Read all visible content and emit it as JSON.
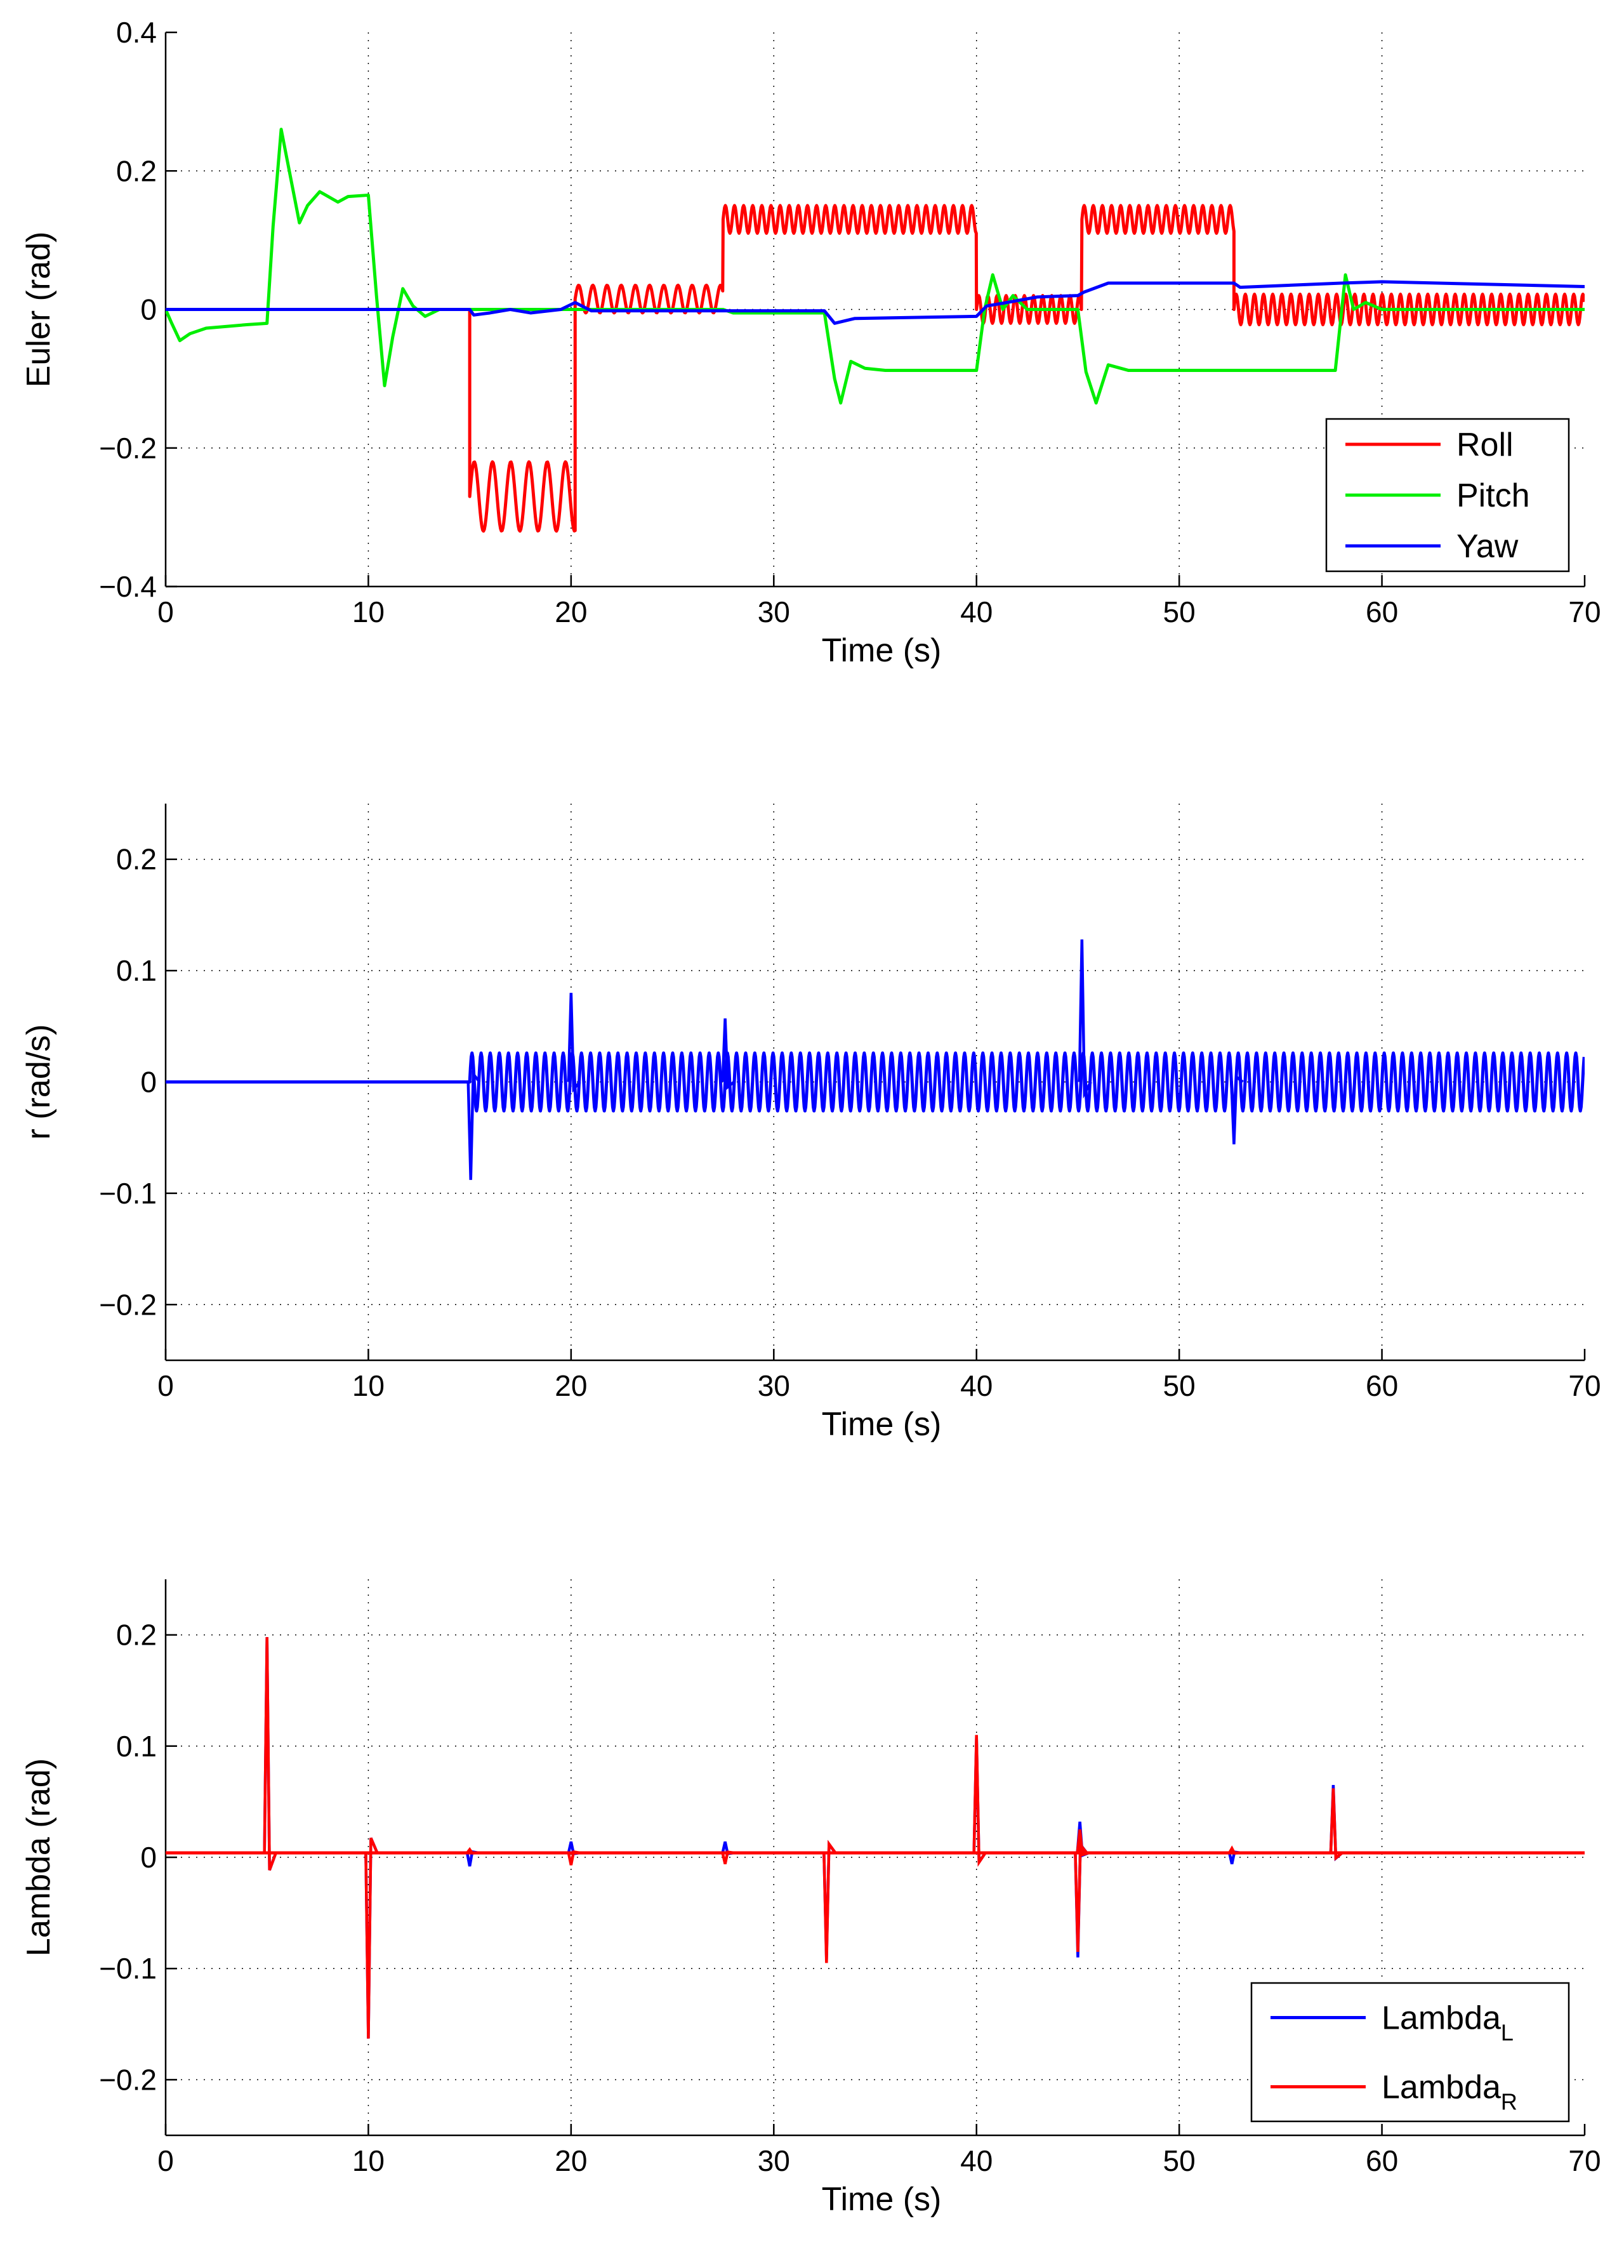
{
  "chart_data": [
    {
      "type": "line",
      "title": "",
      "xlabel": "Time (s)",
      "ylabel": "Euler (rad)",
      "xlim": [
        0,
        70
      ],
      "ylim": [
        -0.4,
        0.4
      ],
      "xticks": [
        0,
        10,
        20,
        30,
        40,
        50,
        60,
        70
      ],
      "yticks": [
        -0.4,
        -0.2,
        0,
        0.2,
        0.4
      ],
      "xtick_labels": [
        "0",
        "10",
        "20",
        "30",
        "40",
        "50",
        "60",
        "70"
      ],
      "ytick_labels": [
        "−0.4",
        "−0.2",
        "0",
        "0.2",
        "0.4"
      ],
      "grid": true,
      "legend_position": "bottom-right",
      "legend": [
        {
          "name": "Roll",
          "color": "#ff0000"
        },
        {
          "name": "Pitch",
          "color": "#00ee00"
        },
        {
          "name": "Yaw",
          "color": "#0000ff"
        }
      ],
      "series": [
        {
          "name": "Roll",
          "color": "#ff0000",
          "segments": [
            {
              "t0": 0,
              "t1": 15,
              "base": 0,
              "amp": 0,
              "period": 1
            },
            {
              "t0": 15,
              "t1": 20.2,
              "base": -0.27,
              "amp": 0.05,
              "period": 0.9
            },
            {
              "t0": 20.2,
              "t1": 27.5,
              "base": 0.015,
              "amp": 0.02,
              "period": 0.7
            },
            {
              "t0": 27.5,
              "t1": 40,
              "base": 0.13,
              "amp": 0.02,
              "period": 0.45
            },
            {
              "t0": 40,
              "t1": 45.2,
              "base": 0.0,
              "amp": 0.02,
              "period": 0.45
            },
            {
              "t0": 45.2,
              "t1": 52.7,
              "base": 0.13,
              "amp": 0.02,
              "period": 0.45
            },
            {
              "t0": 52.7,
              "t1": 70,
              "base": 0.0,
              "amp": 0.022,
              "period": 0.45
            }
          ]
        },
        {
          "name": "Pitch",
          "color": "#00ee00",
          "points": [
            [
              0,
              0
            ],
            [
              0.3,
              -0.02
            ],
            [
              0.7,
              -0.045
            ],
            [
              1.2,
              -0.035
            ],
            [
              2,
              -0.027
            ],
            [
              4,
              -0.022
            ],
            [
              5,
              -0.02
            ],
            [
              5.3,
              0.12
            ],
            [
              5.7,
              0.26
            ],
            [
              6.1,
              0.2
            ],
            [
              6.6,
              0.125
            ],
            [
              7,
              0.15
            ],
            [
              7.6,
              0.17
            ],
            [
              8.5,
              0.155
            ],
            [
              9,
              0.163
            ],
            [
              10,
              0.165
            ],
            [
              10.4,
              0.02
            ],
            [
              10.8,
              -0.11
            ],
            [
              11.2,
              -0.04
            ],
            [
              11.7,
              0.03
            ],
            [
              12.2,
              0.005
            ],
            [
              12.8,
              -0.01
            ],
            [
              13.5,
              0
            ],
            [
              27.5,
              0
            ],
            [
              28,
              -0.005
            ],
            [
              32.5,
              -0.005
            ],
            [
              33,
              -0.1
            ],
            [
              33.3,
              -0.135
            ],
            [
              33.8,
              -0.075
            ],
            [
              34.5,
              -0.085
            ],
            [
              35.5,
              -0.088
            ],
            [
              40,
              -0.088
            ],
            [
              40.4,
              0.0
            ],
            [
              40.8,
              0.05
            ],
            [
              41.3,
              0.0
            ],
            [
              41.8,
              0.02
            ],
            [
              42.5,
              0.0
            ],
            [
              45,
              0.0
            ],
            [
              45.4,
              -0.09
            ],
            [
              45.9,
              -0.135
            ],
            [
              46.5,
              -0.08
            ],
            [
              47.5,
              -0.088
            ],
            [
              57.7,
              -0.088
            ],
            [
              58.2,
              0.05
            ],
            [
              58.6,
              0.0
            ],
            [
              59.2,
              0.01
            ],
            [
              60,
              0.0
            ],
            [
              70,
              0.0
            ]
          ]
        },
        {
          "name": "Yaw",
          "color": "#0000ff",
          "points": [
            [
              0,
              0
            ],
            [
              15,
              0
            ],
            [
              15.2,
              -0.008
            ],
            [
              16,
              -0.005
            ],
            [
              17,
              0
            ],
            [
              18,
              -0.005
            ],
            [
              19.5,
              0
            ],
            [
              20.2,
              0.01
            ],
            [
              21,
              -0.002
            ],
            [
              27.5,
              -0.002
            ],
            [
              32.5,
              -0.002
            ],
            [
              33,
              -0.02
            ],
            [
              34,
              -0.013
            ],
            [
              40,
              -0.01
            ],
            [
              40.5,
              0.005
            ],
            [
              41.5,
              0.01
            ],
            [
              43,
              0.018
            ],
            [
              45,
              0.02
            ],
            [
              45.3,
              0.025
            ],
            [
              46.5,
              0.038
            ],
            [
              52.7,
              0.038
            ],
            [
              53,
              0.032
            ],
            [
              58,
              0.038
            ],
            [
              60,
              0.04
            ],
            [
              70,
              0.033
            ]
          ]
        }
      ]
    },
    {
      "type": "line",
      "title": "",
      "xlabel": "Time (s)",
      "ylabel": "r (rad/s)",
      "xlim": [
        0,
        70
      ],
      "ylim": [
        -0.25,
        0.25
      ],
      "xticks": [
        0,
        10,
        20,
        30,
        40,
        50,
        60,
        70
      ],
      "yticks": [
        -0.2,
        -0.1,
        0,
        0.1,
        0.2
      ],
      "xtick_labels": [
        "0",
        "10",
        "20",
        "30",
        "40",
        "50",
        "60",
        "70"
      ],
      "ytick_labels": [
        "−0.2",
        "−0.1",
        "0",
        "0.1",
        "0.2"
      ],
      "grid": true,
      "series": [
        {
          "name": "r",
          "color": "#0000ff",
          "segments": [
            {
              "t0": 0,
              "t1": 15,
              "base": 0,
              "amp": 0,
              "period": 1
            },
            {
              "t0": 15,
              "t1": 70,
              "base": 0.0,
              "amp": 0.026,
              "period": 0.45
            }
          ],
          "spikes": [
            [
              15.05,
              -0.088
            ],
            [
              20.0,
              0.08
            ],
            [
              27.6,
              0.057
            ],
            [
              45.2,
              0.128
            ],
            [
              52.7,
              -0.056
            ]
          ]
        }
      ]
    },
    {
      "type": "line",
      "title": "",
      "xlabel": "Time (s)",
      "ylabel": "Lambda (rad)",
      "xlim": [
        0,
        70
      ],
      "ylim": [
        -0.25,
        0.25
      ],
      "xticks": [
        0,
        10,
        20,
        30,
        40,
        50,
        60,
        70
      ],
      "yticks": [
        -0.2,
        -0.1,
        0,
        0.1,
        0.2
      ],
      "xtick_labels": [
        "0",
        "10",
        "20",
        "30",
        "40",
        "50",
        "60",
        "70"
      ],
      "ytick_labels": [
        "−0.2",
        "−0.1",
        "0",
        "0.1",
        "0.2"
      ],
      "grid": true,
      "legend_position": "bottom-right",
      "legend": [
        {
          "name": "Lambda",
          "sub": "L",
          "color": "#0000ff"
        },
        {
          "name": "Lambda",
          "sub": "R",
          "color": "#ff0000"
        }
      ],
      "series": [
        {
          "name": "Lambda_L",
          "color": "#0000ff",
          "base": 0.004,
          "spikes": [
            [
              5.0,
              0.198
            ],
            [
              10.0,
              -0.163
            ],
            [
              15.0,
              -0.008
            ],
            [
              20.0,
              0.014
            ],
            [
              27.6,
              0.014
            ],
            [
              32.6,
              -0.092
            ],
            [
              40.0,
              0.108
            ],
            [
              45.0,
              -0.09
            ],
            [
              45.1,
              0.032
            ],
            [
              52.6,
              -0.006
            ],
            [
              57.6,
              0.065
            ]
          ]
        },
        {
          "name": "Lambda_R",
          "color": "#ff0000",
          "base": 0.004,
          "spikes": [
            [
              5.0,
              0.198
            ],
            [
              10.0,
              -0.163
            ],
            [
              15.0,
              0.007
            ],
            [
              20.0,
              -0.007
            ],
            [
              27.6,
              -0.006
            ],
            [
              32.6,
              -0.095
            ],
            [
              40.0,
              0.11
            ],
            [
              45.0,
              -0.085
            ],
            [
              45.1,
              0.025
            ],
            [
              52.6,
              0.008
            ],
            [
              57.6,
              0.062
            ]
          ]
        }
      ]
    }
  ]
}
